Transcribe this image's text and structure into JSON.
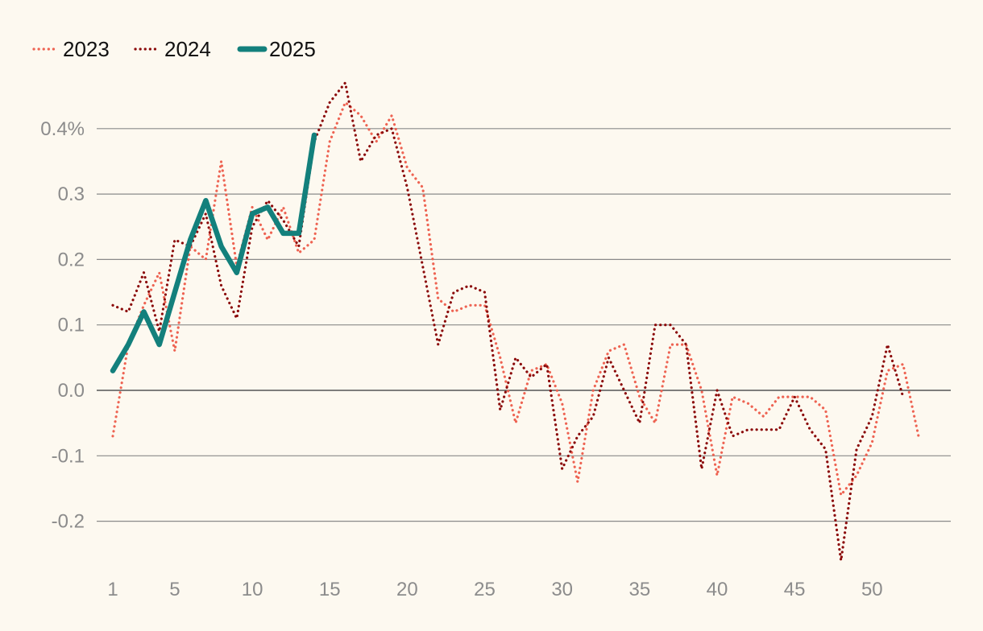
{
  "chart_data": {
    "type": "line",
    "title": "",
    "xlabel": "",
    "ylabel": "",
    "x": [
      1,
      2,
      3,
      4,
      5,
      6,
      7,
      8,
      9,
      10,
      11,
      12,
      13,
      14,
      15,
      16,
      17,
      18,
      19,
      20,
      21,
      22,
      23,
      24,
      25,
      26,
      27,
      28,
      29,
      30,
      31,
      32,
      33,
      34,
      35,
      36,
      37,
      38,
      39,
      40,
      41,
      42,
      43,
      44,
      45,
      46,
      47,
      48,
      49,
      50,
      51,
      52,
      53
    ],
    "xlim": [
      1,
      53
    ],
    "ylim": [
      -0.27,
      0.47
    ],
    "x_ticks": [
      {
        "value": 1,
        "label": "1"
      },
      {
        "value": 5,
        "label": "5"
      },
      {
        "value": 10,
        "label": "10"
      },
      {
        "value": 15,
        "label": "15"
      },
      {
        "value": 20,
        "label": "20"
      },
      {
        "value": 25,
        "label": "25"
      },
      {
        "value": 30,
        "label": "30"
      },
      {
        "value": 35,
        "label": "35"
      },
      {
        "value": 40,
        "label": "40"
      },
      {
        "value": 45,
        "label": "45"
      },
      {
        "value": 50,
        "label": "50"
      }
    ],
    "y_ticks": [
      {
        "value": 0.4,
        "label": "0.4%"
      },
      {
        "value": 0.3,
        "label": "0.3"
      },
      {
        "value": 0.2,
        "label": "0.2"
      },
      {
        "value": 0.1,
        "label": "0.1"
      },
      {
        "value": 0.0,
        "label": "0.0"
      },
      {
        "value": -0.1,
        "label": "-0.1"
      },
      {
        "value": -0.2,
        "label": "-0.2"
      }
    ],
    "grid": true,
    "legend_position": "top-left",
    "series": [
      {
        "name": "2023",
        "color": "#ee6352",
        "style": "dotted",
        "values": [
          -0.07,
          0.07,
          0.13,
          0.18,
          0.06,
          0.22,
          0.2,
          0.35,
          0.19,
          0.28,
          0.23,
          0.28,
          0.21,
          0.23,
          0.38,
          0.44,
          0.42,
          0.38,
          0.42,
          0.34,
          0.31,
          0.14,
          0.12,
          0.13,
          0.13,
          0.05,
          -0.05,
          0.03,
          0.04,
          -0.02,
          -0.14,
          0.0,
          0.06,
          0.07,
          -0.01,
          -0.05,
          0.07,
          0.07,
          0.0,
          -0.13,
          -0.01,
          -0.02,
          -0.04,
          -0.01,
          -0.01,
          -0.01,
          -0.03,
          -0.16,
          -0.13,
          -0.08,
          0.03,
          0.04,
          -0.07
        ]
      },
      {
        "name": "2024",
        "color": "#8b0a0a",
        "style": "dotted",
        "values": [
          0.13,
          0.12,
          0.18,
          0.09,
          0.23,
          0.22,
          0.27,
          0.16,
          0.11,
          0.25,
          0.29,
          0.26,
          0.22,
          0.38,
          0.44,
          0.47,
          0.35,
          0.39,
          0.4,
          0.31,
          0.19,
          0.07,
          0.15,
          0.16,
          0.15,
          -0.03,
          0.05,
          0.02,
          0.04,
          -0.12,
          -0.07,
          -0.04,
          0.05,
          0.0,
          -0.05,
          0.1,
          0.1,
          0.07,
          -0.12,
          0.0,
          -0.07,
          -0.06,
          -0.06,
          -0.06,
          -0.01,
          -0.06,
          -0.09,
          -0.26,
          -0.09,
          -0.04,
          0.07,
          -0.01,
          null
        ]
      },
      {
        "name": "2025",
        "color": "#13807c",
        "style": "solid",
        "values": [
          0.03,
          0.07,
          0.12,
          0.07,
          0.15,
          0.23,
          0.29,
          0.22,
          0.18,
          0.27,
          0.28,
          0.24,
          0.24,
          0.39,
          null,
          null,
          null,
          null,
          null,
          null,
          null,
          null,
          null,
          null,
          null,
          null,
          null,
          null,
          null,
          null,
          null,
          null,
          null,
          null,
          null,
          null,
          null,
          null,
          null,
          null,
          null,
          null,
          null,
          null,
          null,
          null,
          null,
          null,
          null,
          null,
          null,
          null,
          null
        ]
      }
    ]
  }
}
